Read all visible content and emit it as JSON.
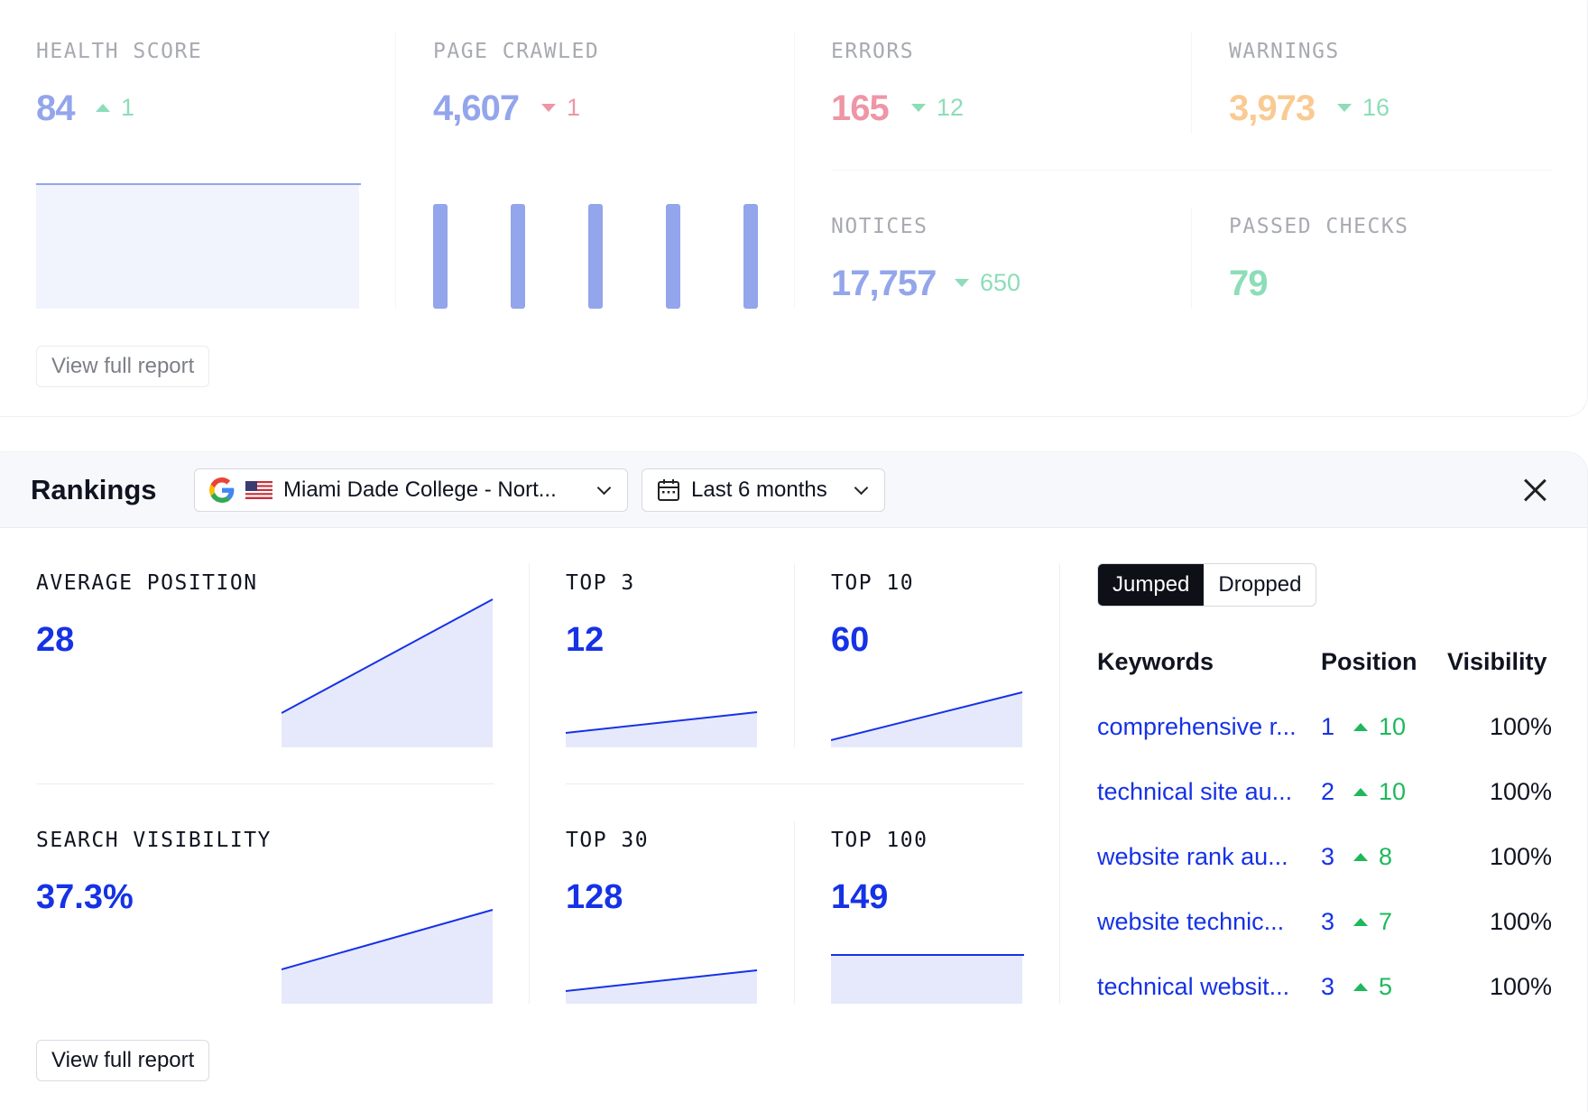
{
  "audit": {
    "health_score": {
      "label": "HEALTH SCORE",
      "value": "84",
      "delta": "1",
      "delta_dir": "up"
    },
    "page_crawled": {
      "label": "PAGE CRAWLED",
      "value": "4,607",
      "delta": "1",
      "delta_dir": "down"
    },
    "errors": {
      "label": "ERRORS",
      "value": "165",
      "delta": "12",
      "delta_dir": "down"
    },
    "warnings": {
      "label": "WARNINGS",
      "value": "3,973",
      "delta": "16",
      "delta_dir": "down"
    },
    "notices": {
      "label": "NOTICES",
      "value": "17,757",
      "delta": "650",
      "delta_dir": "down"
    },
    "passed_checks": {
      "label": "PASSED CHECKS",
      "value": "79"
    },
    "view_report_label": "View full report",
    "colors": {
      "blue": "#3b5bdb",
      "red": "#e0405e",
      "orange": "#f59f3a",
      "green": "#2ec27e"
    }
  },
  "rankings": {
    "title": "Rankings",
    "location_dropdown": {
      "label": "Miami Dade College - Nort...",
      "icons": [
        "google-icon",
        "us-flag-icon",
        "chevron-down-icon"
      ]
    },
    "period_dropdown": {
      "label": "Last 6 months",
      "icons": [
        "calendar-icon",
        "chevron-down-icon"
      ]
    },
    "metrics": {
      "average_position": {
        "label": "AVERAGE POSITION",
        "value": "28"
      },
      "top3": {
        "label": "TOP 3",
        "value": "12"
      },
      "top10": {
        "label": "TOP 10",
        "value": "60"
      },
      "search_visibility": {
        "label": "SEARCH VISIBILITY",
        "value": "37.3%"
      },
      "top30": {
        "label": "TOP 30",
        "value": "128"
      },
      "top100": {
        "label": "TOP 100",
        "value": "149"
      }
    },
    "toggle": {
      "jumped": "Jumped",
      "dropped": "Dropped",
      "active": "jumped"
    },
    "table": {
      "headers": {
        "keywords": "Keywords",
        "position": "Position",
        "visibility": "Visibility"
      },
      "rows": [
        {
          "keyword": "comprehensive r...",
          "position": "1",
          "delta": "10",
          "visibility": "100%"
        },
        {
          "keyword": "technical site au...",
          "position": "2",
          "delta": "10",
          "visibility": "100%"
        },
        {
          "keyword": "website rank au...",
          "position": "3",
          "delta": "8",
          "visibility": "100%"
        },
        {
          "keyword": "website technic...",
          "position": "3",
          "delta": "7",
          "visibility": "100%"
        },
        {
          "keyword": "technical websit...",
          "position": "3",
          "delta": "5",
          "visibility": "100%"
        }
      ]
    },
    "view_report_label": "View full report",
    "colors": {
      "accent": "#1532e6",
      "positive": "#1fb85d",
      "fill": "#e6e9fb"
    }
  }
}
